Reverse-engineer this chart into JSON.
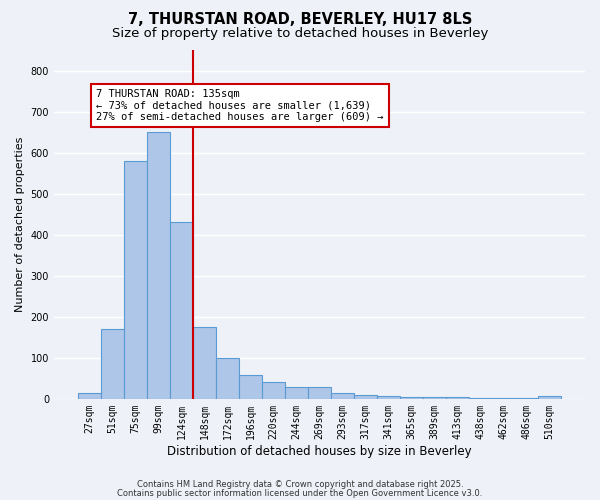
{
  "title1": "7, THURSTAN ROAD, BEVERLEY, HU17 8LS",
  "title2": "Size of property relative to detached houses in Beverley",
  "xlabel": "Distribution of detached houses by size in Beverley",
  "ylabel": "Number of detached properties",
  "bar_labels": [
    "27sqm",
    "51sqm",
    "75sqm",
    "99sqm",
    "124sqm",
    "148sqm",
    "172sqm",
    "196sqm",
    "220sqm",
    "244sqm",
    "269sqm",
    "293sqm",
    "317sqm",
    "341sqm",
    "365sqm",
    "389sqm",
    "413sqm",
    "438sqm",
    "462sqm",
    "486sqm",
    "510sqm"
  ],
  "bar_values": [
    15,
    170,
    580,
    650,
    430,
    175,
    100,
    57,
    40,
    30,
    30,
    13,
    10,
    8,
    5,
    5,
    5,
    3,
    2,
    2,
    6
  ],
  "bar_color": "#aec6e8",
  "bar_edge_color": "#5b9bd5",
  "vline_index": 4,
  "vline_color": "#cc0000",
  "annotation_text_line1": "7 THURSTAN ROAD: 135sqm",
  "annotation_text_line2": "← 73% of detached houses are smaller (1,639)",
  "annotation_text_line3": "27% of semi-detached houses are larger (609) →",
  "ylim": [
    0,
    850
  ],
  "yticks": [
    0,
    100,
    200,
    300,
    400,
    500,
    600,
    700,
    800
  ],
  "bg_color": "#eef2f8",
  "grid_color": "#ffffff",
  "footer1": "Contains HM Land Registry data © Crown copyright and database right 2025.",
  "footer2": "Contains public sector information licensed under the Open Government Licence v3.0.",
  "title_fontsize": 10.5,
  "subtitle_fontsize": 9.5,
  "xlabel_fontsize": 8.5,
  "ylabel_fontsize": 8,
  "tick_fontsize": 7,
  "annot_fontsize": 7.5,
  "footer_fontsize": 6
}
